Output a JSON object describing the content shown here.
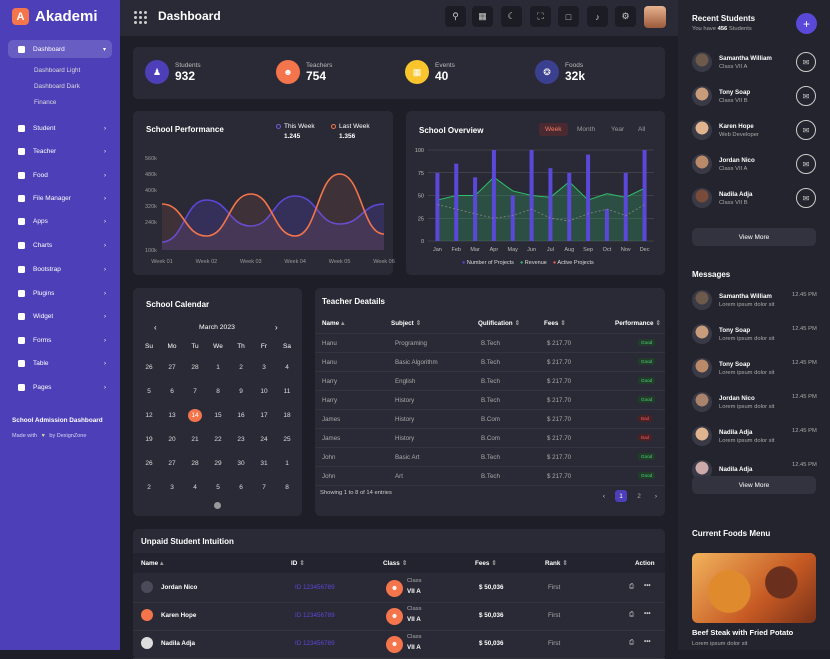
{
  "app": {
    "name": "Akademi",
    "logo_letter": "A",
    "accent": "#4c3fb8",
    "orange": "#f4754b"
  },
  "header": {
    "title": "Dashboard"
  },
  "sidebar": {
    "items": [
      {
        "label": "Dashboard"
      },
      {
        "label": "Student"
      },
      {
        "label": "Teacher"
      },
      {
        "label": "Food"
      },
      {
        "label": "File Manager"
      },
      {
        "label": "Apps"
      },
      {
        "label": "Charts"
      },
      {
        "label": "Bootstrap"
      },
      {
        "label": "Plugins"
      },
      {
        "label": "Widget"
      },
      {
        "label": "Forms"
      },
      {
        "label": "Table"
      },
      {
        "label": "Pages"
      }
    ],
    "sub_items": [
      "Dashboard Light",
      "Dashboard Dark",
      "Finance"
    ],
    "footer_title": "School Admission Dashboard",
    "footer_made_pre": "Made with",
    "footer_made_post": "by DexignZone"
  },
  "stats": [
    {
      "label": "Students",
      "value": "932",
      "color": "#4c3fb8",
      "icon": "student-icon"
    },
    {
      "label": "Teachers",
      "value": "754",
      "color": "#f4754b",
      "icon": "teacher-icon"
    },
    {
      "label": "Events",
      "value": "40",
      "color": "#f9c42c",
      "icon": "calendar-icon"
    },
    {
      "label": "Foods",
      "value": "32k",
      "color": "#3a3f8f",
      "icon": "food-icon"
    }
  ],
  "performance": {
    "title": "School Performance",
    "legend": [
      {
        "name": "This Week",
        "value": "1.245",
        "color": "#4c3fb8"
      },
      {
        "name": "Last Week",
        "value": "1.356",
        "color": "#f4754b"
      }
    ]
  },
  "overview": {
    "title": "School Overview",
    "tabs": [
      "Week",
      "Month",
      "Year",
      "All"
    ],
    "legend": [
      "Number of Projects",
      "Revenue",
      "Active Projects"
    ]
  },
  "chart_data": [
    {
      "type": "area",
      "title": "School Performance",
      "categories": [
        "Week 01",
        "Week 02",
        "Week 03",
        "Week 04",
        "Week 05",
        "Week 06"
      ],
      "y_ticks": [
        "100k",
        "240k",
        "320k",
        "400k",
        "480k",
        "560k"
      ],
      "series": [
        {
          "name": "This Week",
          "values": [
            140,
            350,
            220,
            370,
            230,
            330
          ]
        },
        {
          "name": "Last Week",
          "values": [
            330,
            170,
            380,
            170,
            480,
            180
          ]
        }
      ]
    },
    {
      "type": "bar",
      "title": "School Overview",
      "categories": [
        "Jan",
        "Feb",
        "Mar",
        "Apr",
        "May",
        "Jun",
        "Jul",
        "Aug",
        "Sep",
        "Oct",
        "Nov",
        "Dec"
      ],
      "ylim": [
        0,
        100
      ],
      "y_ticks": [
        "0",
        "25",
        "50",
        "75",
        "100"
      ],
      "series": [
        {
          "name": "Number of Projects",
          "values": [
            75,
            85,
            70,
            100,
            50,
            100,
            80,
            75,
            95,
            35,
            75,
            100
          ]
        },
        {
          "name": "Revenue",
          "values": [
            45,
            50,
            50,
            70,
            55,
            50,
            48,
            65,
            45,
            52,
            48,
            58
          ]
        },
        {
          "name": "Active Projects",
          "values": [
            40,
            35,
            30,
            25,
            28,
            35,
            25,
            22,
            30,
            35,
            28,
            40
          ]
        }
      ]
    }
  ],
  "calendar": {
    "title": "School Calendar",
    "month": "March 2023",
    "weekdays": [
      "Su",
      "Mo",
      "Tu",
      "We",
      "Th",
      "Fr",
      "Sa"
    ],
    "weeks": [
      [
        "26",
        "27",
        "28",
        "1",
        "2",
        "3",
        "4"
      ],
      [
        "5",
        "6",
        "7",
        "8",
        "9",
        "10",
        "11"
      ],
      [
        "12",
        "13",
        "14",
        "15",
        "16",
        "17",
        "18"
      ],
      [
        "19",
        "20",
        "21",
        "22",
        "23",
        "24",
        "25"
      ],
      [
        "26",
        "27",
        "28",
        "29",
        "30",
        "31",
        "1"
      ],
      [
        "2",
        "3",
        "4",
        "5",
        "6",
        "7",
        "8"
      ]
    ],
    "today": "14"
  },
  "teachers": {
    "title": "Teacher Deatails",
    "headers": [
      "Name",
      "Subject",
      "Qulification",
      "Fees",
      "Performance"
    ],
    "rows": [
      [
        "Hanu",
        "Programing",
        "B.Tech",
        "$ 217.70",
        "Good"
      ],
      [
        "Hanu",
        "Basic Algorithm",
        "B.Tech",
        "$ 217.70",
        "Good"
      ],
      [
        "Harry",
        "English",
        "B.Tech",
        "$ 217.70",
        "Good"
      ],
      [
        "Harry",
        "History",
        "B.Tech",
        "$ 217.70",
        "Good"
      ],
      [
        "James",
        "History",
        "B.Com",
        "$ 217.70",
        "Bad"
      ],
      [
        "James",
        "History",
        "B.Com",
        "$ 217.70",
        "Bad"
      ],
      [
        "John",
        "Basic Art",
        "B.Tech",
        "$ 217.70",
        "Good"
      ],
      [
        "John",
        "Art",
        "B.Tech",
        "$ 217.70",
        "Good"
      ]
    ],
    "footer": "Showing 1 to 8 of 14 entries",
    "pages": [
      "1",
      "2"
    ]
  },
  "unpaid": {
    "title": "Unpaid Student Intuition",
    "headers": [
      "Name",
      "ID",
      "Class",
      "Fees",
      "Rank",
      "Action"
    ],
    "rows": [
      {
        "name": "Jordan Nico",
        "id": "ID 123456789",
        "class_label": "Class",
        "class": "VII A",
        "fees": "$ 50,036",
        "rank": "First"
      },
      {
        "name": "Karen Hope",
        "id": "ID 123456789",
        "class_label": "Class",
        "class": "VII A",
        "fees": "$ 50,036",
        "rank": "First"
      },
      {
        "name": "Nadila Adja",
        "id": "ID 123456789",
        "class_label": "Class",
        "class": "VII A",
        "fees": "$ 50,036",
        "rank": "First"
      }
    ]
  },
  "recent_students": {
    "title": "Recent Students",
    "subtitle_pre": "You have",
    "count": "456",
    "subtitle_post": "Students",
    "items": [
      {
        "name": "Samantha William",
        "class": "Class VII A"
      },
      {
        "name": "Tony Soap",
        "class": "Class VII B"
      },
      {
        "name": "Karen Hope",
        "class": "Web Developer"
      },
      {
        "name": "Jordan Nico",
        "class": "Class VII A"
      },
      {
        "name": "Nadila Adja",
        "class": "Class VII B"
      }
    ],
    "more": "View More"
  },
  "messages": {
    "title": "Messages",
    "items": [
      {
        "name": "Samantha William",
        "text": "Lorem ipsum dolor sit",
        "time": "12.45 PM"
      },
      {
        "name": "Tony Soap",
        "text": "Lorem ipsum dolor sit",
        "time": "12.45 PM"
      },
      {
        "name": "Tony Soap",
        "text": "Lorem ipsum dolor sit",
        "time": "12.45 PM"
      },
      {
        "name": "Jordan Nico",
        "text": "Lorem ipsum dolor sit",
        "time": "12.45 PM"
      },
      {
        "name": "Nadila Adja",
        "text": "Lorem ipsum dolor sit",
        "time": "12.45 PM"
      },
      {
        "name": "Nadila Adja",
        "text": "",
        "time": "12.45 PM"
      }
    ],
    "more": "View More"
  },
  "foods": {
    "title": "Current Foods Menu",
    "item_name": "Beef Steak with Fried Potato",
    "item_desc": "Lorem ipsum dolor sit"
  }
}
